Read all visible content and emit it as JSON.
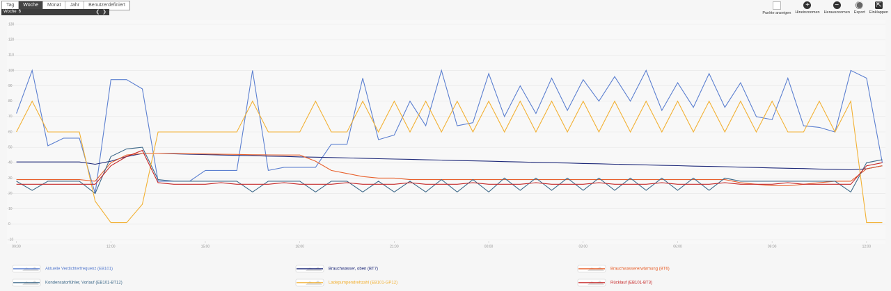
{
  "toolbar": {
    "tabs": [
      "Tag",
      "Woche",
      "Monat",
      "Jahr",
      "Benutzerdefiniert"
    ],
    "period_label": "Woche",
    "period_value": "6",
    "actions": [
      "Punkte anzeigen",
      "Hineinzoomen",
      "Herauszoomen",
      "Export",
      "Einklappen"
    ]
  },
  "chart_data": {
    "type": "line",
    "x": [
      0,
      0.5,
      1,
      1.5,
      2,
      2.5,
      3,
      3.5,
      4,
      4.5,
      5,
      5.5,
      6,
      6.5,
      7,
      7.5,
      8,
      8.5,
      9,
      9.5,
      10,
      10.5,
      11,
      11.5,
      12,
      12.5,
      13,
      13.5,
      14,
      14.5,
      15,
      15.5,
      16,
      16.5,
      17,
      17.5,
      18,
      18.5,
      19,
      19.5,
      20,
      20.5,
      21,
      21.5,
      22,
      22.5,
      23,
      23.5,
      24,
      24.5,
      25,
      25.5,
      26,
      26.5,
      27,
      27.5
    ],
    "xlim": [
      -0.3,
      27.6
    ],
    "xticks": [
      {
        "value": 0,
        "label": "09:00"
      },
      {
        "value": 3,
        "label": "12:00"
      },
      {
        "value": 6,
        "label": "15:00"
      },
      {
        "value": 9,
        "label": "18:00"
      },
      {
        "value": 12,
        "label": "21:00"
      },
      {
        "value": 15,
        "label": "00:00"
      },
      {
        "value": 18,
        "label": "03:00"
      },
      {
        "value": 21,
        "label": "06:00"
      },
      {
        "value": 24,
        "label": "09:00"
      },
      {
        "value": 27,
        "label": "12:00"
      }
    ],
    "ylim": [
      -10,
      130
    ],
    "yticks": [
      -10,
      0,
      10,
      20,
      30,
      40,
      50,
      60,
      70,
      80,
      90,
      100,
      110,
      120,
      130
    ],
    "grid": true,
    "series": [
      {
        "name": "Aktuelle Verdichterfrequenz (EB101)",
        "color": "#5b7fd0",
        "values": [
          72,
          100,
          51,
          56,
          56,
          20,
          94,
          94,
          88,
          28,
          28,
          28,
          35,
          35,
          35,
          100,
          35,
          37,
          37,
          37,
          52,
          52,
          95,
          55,
          58,
          80,
          64,
          100,
          64,
          66,
          98,
          70,
          90,
          72,
          95,
          74,
          94,
          80,
          96,
          80,
          100,
          74,
          92,
          76,
          98,
          76,
          92,
          70,
          68,
          95,
          64,
          63,
          60,
          100,
          95,
          40
        ]
      },
      {
        "name": "Brauchwasser, oben (BT7)",
        "color": "#1f2a7a",
        "values": [
          40.5,
          40.5,
          40.5,
          40.5,
          40.5,
          39,
          41,
          44,
          46,
          46,
          45.8,
          45.5,
          45.3,
          45.0,
          44.8,
          44.6,
          44.3,
          44.1,
          43.8,
          43.6,
          43.4,
          43.1,
          42.9,
          42.6,
          42.4,
          42.2,
          41.9,
          41.7,
          41.4,
          41.2,
          41.0,
          40.7,
          40.5,
          40.2,
          40.0,
          39.8,
          39.5,
          39.3,
          39.0,
          38.8,
          38.6,
          38.3,
          38.1,
          37.8,
          37.6,
          37.4,
          37.1,
          36.9,
          36.6,
          36.4,
          36.2,
          35.9,
          35.7,
          35.4,
          36,
          38
        ]
      },
      {
        "name": "Brauchwassererwärmung (BT6)",
        "color": "#e8602c",
        "values": [
          29,
          29,
          29,
          29,
          29,
          28,
          40,
          45,
          46,
          46,
          46,
          45.8,
          45.7,
          45.5,
          45.4,
          45.2,
          45.1,
          45,
          45,
          41,
          35,
          33,
          31,
          30,
          30,
          29,
          29,
          29,
          29,
          29,
          29,
          29,
          29,
          29,
          29,
          29,
          29,
          29,
          29,
          29,
          29,
          29,
          29,
          29,
          29,
          29,
          27,
          26,
          25,
          25,
          26,
          27,
          28,
          28,
          36,
          38
        ]
      },
      {
        "name": "Kondensatorfühler, Vorlauf (EB101-BT12)",
        "color": "#3f6a8a",
        "values": [
          28,
          22,
          28,
          28,
          28,
          20,
          44,
          49,
          50,
          29,
          28,
          28,
          28,
          28,
          28,
          21,
          28,
          28,
          28,
          21,
          28,
          28,
          21,
          28,
          21,
          28,
          21,
          29,
          21,
          29,
          21,
          30,
          22,
          30,
          22,
          30,
          22,
          30,
          22,
          30,
          22,
          30,
          22,
          30,
          22,
          30,
          28,
          28,
          28,
          28,
          28,
          28,
          28,
          21,
          40,
          42
        ]
      },
      {
        "name": "Ladepumpendrehzahl (EB101-GP12)",
        "color": "#f2b134",
        "values": [
          60,
          80,
          60,
          60,
          60,
          15,
          1,
          1,
          13,
          60,
          60,
          60,
          60,
          60,
          60,
          80,
          60,
          60,
          60,
          80,
          60,
          60,
          80,
          60,
          80,
          60,
          80,
          60,
          80,
          60,
          80,
          60,
          80,
          60,
          80,
          60,
          80,
          60,
          80,
          60,
          80,
          60,
          80,
          60,
          80,
          60,
          80,
          60,
          80,
          60,
          60,
          80,
          60,
          80,
          1,
          1
        ]
      },
      {
        "name": "Rücklauf (EB101-BT3)",
        "color": "#c62828",
        "values": [
          26,
          26,
          26,
          26,
          26,
          26,
          38,
          44,
          48,
          27,
          26,
          26,
          26,
          27,
          26,
          26,
          26,
          27,
          26,
          26,
          26,
          27,
          26,
          26,
          26,
          27,
          26,
          26,
          26,
          27,
          26,
          26,
          26,
          27,
          26,
          26,
          26,
          27,
          26,
          26,
          26,
          27,
          26,
          26,
          26,
          27,
          26,
          26,
          26,
          27,
          26,
          26,
          26,
          26,
          38,
          40
        ]
      }
    ]
  }
}
